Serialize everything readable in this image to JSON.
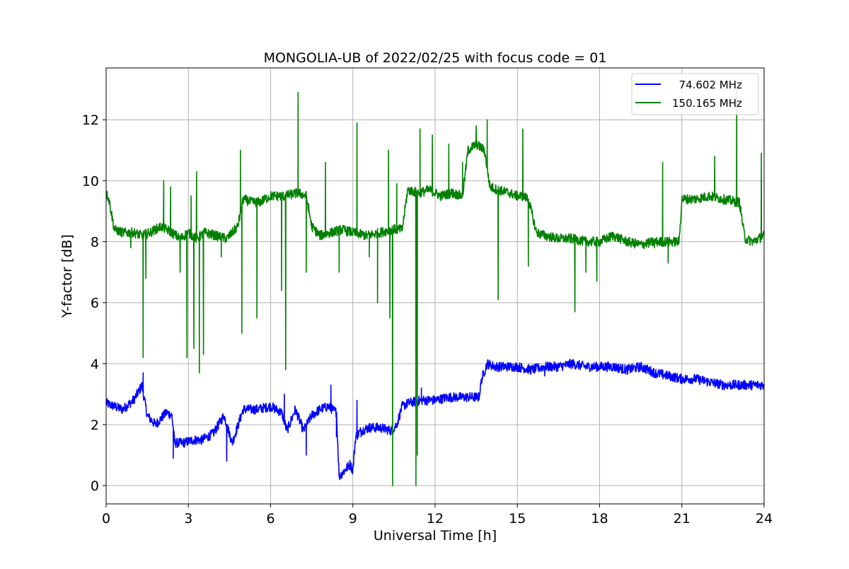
{
  "chart_data": {
    "type": "line",
    "title": "MONGOLIA-UB of 2022/02/25 with focus code = 01",
    "xlabel": "Universal Time [h]",
    "ylabel": "Y-factor [dB]",
    "xlim": [
      0,
      24
    ],
    "ylim": [
      -0.6,
      13.7
    ],
    "xticks": [
      0,
      3,
      6,
      9,
      12,
      15,
      18,
      21,
      24
    ],
    "yticks": [
      0,
      2,
      4,
      6,
      8,
      10,
      12
    ],
    "grid": true,
    "legend_position": "top-right",
    "series": [
      {
        "name": "  74.602 MHz",
        "color": "#0000ff",
        "x": [
          0,
          0.3,
          0.6,
          1.0,
          1.2,
          1.3,
          1.5,
          1.8,
          2.2,
          2.4,
          2.5,
          2.8,
          3.2,
          3.5,
          3.9,
          4.3,
          4.6,
          5.0,
          5.5,
          6.0,
          6.4,
          6.6,
          6.9,
          7.2,
          7.5,
          7.8,
          8.1,
          8.4,
          8.5,
          8.7,
          8.9,
          9.0,
          9.1,
          9.3,
          9.6,
          10.0,
          10.4,
          10.6,
          10.8,
          11.0,
          11.5,
          12.0,
          12.5,
          13.0,
          13.6,
          13.7,
          13.9,
          14.2,
          14.6,
          15.0,
          15.5,
          16.0,
          16.5,
          17.0,
          17.5,
          18.0,
          18.5,
          19.0,
          19.5,
          20.0,
          20.5,
          21.0,
          21.5,
          22.0,
          22.5,
          23.0,
          23.5,
          24.0
        ],
        "y": [
          2.7,
          2.6,
          2.5,
          2.8,
          3.1,
          3.3,
          2.3,
          2.0,
          2.4,
          2.3,
          1.4,
          1.4,
          1.5,
          1.5,
          1.7,
          2.3,
          1.4,
          2.5,
          2.5,
          2.6,
          2.4,
          1.8,
          2.5,
          1.8,
          2.3,
          2.5,
          2.6,
          2.4,
          0.3,
          0.5,
          0.7,
          0.5,
          1.6,
          1.8,
          1.9,
          1.9,
          1.8,
          2.0,
          2.6,
          2.7,
          2.8,
          2.8,
          2.9,
          2.9,
          2.9,
          3.5,
          4.0,
          3.9,
          3.9,
          3.9,
          3.8,
          3.9,
          3.9,
          4.0,
          3.9,
          3.9,
          3.9,
          3.8,
          3.9,
          3.7,
          3.6,
          3.5,
          3.5,
          3.4,
          3.3,
          3.3,
          3.3,
          3.3
        ],
        "spikes": [
          [
            1.35,
            3.7
          ],
          [
            2.45,
            0.9
          ],
          [
            4.4,
            0.8
          ],
          [
            6.5,
            3.0
          ],
          [
            7.3,
            1.0
          ],
          [
            8.2,
            3.3
          ],
          [
            8.4,
            1.6
          ],
          [
            9.15,
            2.8
          ],
          [
            9.3,
            1.6
          ],
          [
            11.5,
            3.2
          ],
          [
            16.0,
            3.6
          ]
        ]
      },
      {
        "name": "150.165 MHz",
        "color": "#008000",
        "x": [
          0,
          0.1,
          0.3,
          0.6,
          1.0,
          1.3,
          1.6,
          2.0,
          2.4,
          2.7,
          3.0,
          3.3,
          3.6,
          4.0,
          4.4,
          4.8,
          5.0,
          5.3,
          5.6,
          6.0,
          6.5,
          7.0,
          7.3,
          7.5,
          7.8,
          8.2,
          8.6,
          9.0,
          9.5,
          10.0,
          10.4,
          10.8,
          11.0,
          11.4,
          11.8,
          12.2,
          12.6,
          13.0,
          13.2,
          13.5,
          13.8,
          14.0,
          14.3,
          14.7,
          15.0,
          15.2,
          15.4,
          15.7,
          16.0,
          16.5,
          17.0,
          17.5,
          18.0,
          18.5,
          19.0,
          19.5,
          20.0,
          20.5,
          20.9,
          21.0,
          21.5,
          22.0,
          22.5,
          23.0,
          23.1,
          23.3,
          23.6,
          24.0
        ],
        "y": [
          9.6,
          9.4,
          8.4,
          8.3,
          8.3,
          8.2,
          8.3,
          8.5,
          8.3,
          8.1,
          8.3,
          8.1,
          8.3,
          8.2,
          8.1,
          8.5,
          9.4,
          9.3,
          9.3,
          9.5,
          9.5,
          9.6,
          9.5,
          8.5,
          8.2,
          8.3,
          8.4,
          8.3,
          8.2,
          8.3,
          8.4,
          8.4,
          9.7,
          9.6,
          9.7,
          9.5,
          9.6,
          9.5,
          11.0,
          11.2,
          11.0,
          9.8,
          9.7,
          9.6,
          9.5,
          9.5,
          9.4,
          8.3,
          8.2,
          8.1,
          8.1,
          8.0,
          8.0,
          8.2,
          8.0,
          7.9,
          8.0,
          8.0,
          8.0,
          9.4,
          9.4,
          9.5,
          9.4,
          9.3,
          9.3,
          8.1,
          8.0,
          8.2
        ],
        "spikes": [
          [
            0.9,
            7.8
          ],
          [
            1.35,
            4.2
          ],
          [
            1.45,
            6.8
          ],
          [
            2.1,
            10.0
          ],
          [
            2.35,
            9.8
          ],
          [
            2.7,
            7.0
          ],
          [
            2.95,
            4.2
          ],
          [
            3.1,
            9.5
          ],
          [
            3.2,
            4.5
          ],
          [
            3.3,
            10.3
          ],
          [
            3.4,
            3.7
          ],
          [
            3.55,
            4.3
          ],
          [
            4.2,
            7.5
          ],
          [
            4.9,
            11.0
          ],
          [
            4.95,
            5.0
          ],
          [
            5.5,
            5.5
          ],
          [
            6.4,
            6.4
          ],
          [
            6.55,
            3.8
          ],
          [
            7.0,
            12.9
          ],
          [
            7.3,
            7.0
          ],
          [
            8.0,
            10.6
          ],
          [
            8.5,
            7.0
          ],
          [
            9.15,
            11.9
          ],
          [
            9.6,
            7.5
          ],
          [
            9.9,
            6.0
          ],
          [
            10.3,
            11.0
          ],
          [
            10.35,
            5.5
          ],
          [
            10.45,
            0.0
          ],
          [
            10.6,
            9.9
          ],
          [
            11.3,
            0.0
          ],
          [
            11.35,
            1.0
          ],
          [
            11.45,
            11.7
          ],
          [
            11.9,
            11.5
          ],
          [
            12.5,
            11.2
          ],
          [
            13.0,
            10.6
          ],
          [
            13.5,
            11.8
          ],
          [
            13.9,
            12.0
          ],
          [
            14.3,
            6.1
          ],
          [
            15.2,
            11.7
          ],
          [
            15.4,
            7.2
          ],
          [
            17.1,
            5.7
          ],
          [
            17.5,
            7.0
          ],
          [
            17.9,
            6.7
          ],
          [
            20.0,
            7.8
          ],
          [
            20.5,
            7.3
          ],
          [
            20.3,
            10.6
          ],
          [
            22.2,
            10.8
          ],
          [
            23.0,
            13.0
          ],
          [
            23.9,
            10.9
          ]
        ]
      }
    ]
  }
}
